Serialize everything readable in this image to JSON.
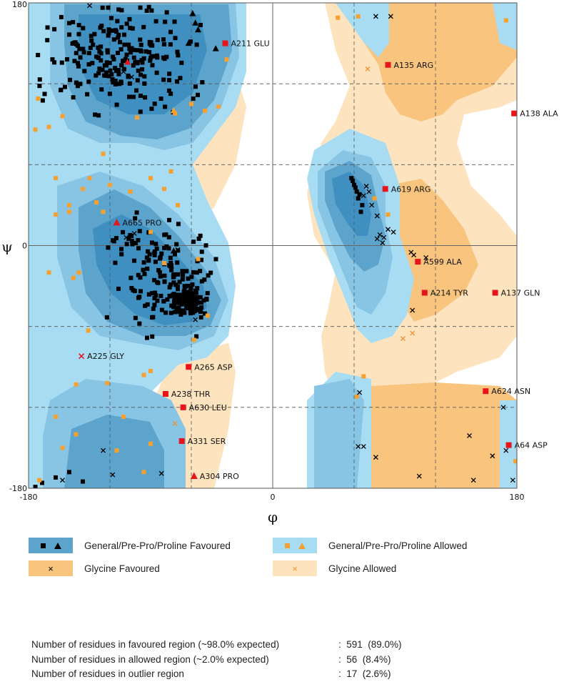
{
  "chart_data": {
    "type": "scatter",
    "xlabel": "φ",
    "ylabel": "ψ",
    "xlim": [
      -180,
      180
    ],
    "ylim": [
      -180,
      180
    ],
    "x_ticks": [
      "-180",
      "0",
      "180"
    ],
    "y_ticks": [
      "180",
      "0",
      "-180"
    ],
    "grid": "dashed lines at ±120 and ±60, solid lines at 0",
    "outliers": [
      {
        "label": "A211 GLU",
        "phi": -35,
        "psi": 150,
        "marker": "square"
      },
      {
        "label": "A135 ARG",
        "phi": 85,
        "psi": 134,
        "marker": "square"
      },
      {
        "label": "A138 ALA",
        "phi": 178,
        "psi": 98,
        "marker": "square"
      },
      {
        "label": "A619 ARG",
        "phi": 83,
        "psi": 42,
        "marker": "square"
      },
      {
        "label": "A665 PRO",
        "phi": -115,
        "psi": 17,
        "marker": "triangle"
      },
      {
        "label": "A599 ALA",
        "phi": 107,
        "psi": -12,
        "marker": "square"
      },
      {
        "label": "A214 TYR",
        "phi": 112,
        "psi": -35,
        "marker": "square"
      },
      {
        "label": "A137 GLN",
        "phi": 164,
        "psi": -35,
        "marker": "square"
      },
      {
        "label": "A225 GLY",
        "phi": -141,
        "psi": -82,
        "marker": "cross"
      },
      {
        "label": "A265 ASP",
        "phi": -62,
        "psi": -90,
        "marker": "square"
      },
      {
        "label": "A238 THR",
        "phi": -79,
        "psi": -110,
        "marker": "square"
      },
      {
        "label": "A624 ASN",
        "phi": 157,
        "psi": -108,
        "marker": "square"
      },
      {
        "label": "A630 LEU",
        "phi": -66,
        "psi": -120,
        "marker": "square"
      },
      {
        "label": "A64 ASP",
        "phi": 174,
        "psi": -148,
        "marker": "square"
      },
      {
        "label": "A331 SER",
        "phi": -67,
        "psi": -145,
        "marker": "square"
      },
      {
        "label": "A304 PRO",
        "phi": -58,
        "psi": -171,
        "marker": "triangle"
      }
    ],
    "hidden_label_residue": {
      "phi": -107,
      "psi": 136,
      "marker": "triangle"
    },
    "legend": {
      "general_favoured": "General/Pre-Pro/Proline Favoured",
      "general_allowed": "General/Pre-Pro/Proline Allowed",
      "glycine_favoured": "Glycine Favoured",
      "glycine_allowed": "Glycine Allowed"
    },
    "colors": {
      "general_favoured_dark": "#3f8fc0",
      "general_favoured": "#5da4cc",
      "general_allowed": "#a8dcf2",
      "general_allowed_mid": "#88c4e4",
      "glycine_favoured": "#f8c47e",
      "glycine_allowed": "#fde3be",
      "outlier": "#e8141c",
      "allowed_marker": "#f5a030"
    }
  },
  "stats": [
    {
      "label": "Number of residues in favoured region (~98.0% expected)",
      "value": ":  591  (89.0%)"
    },
    {
      "label": "Number of residues in allowed region (~2.0% expected)",
      "value": ":  56  (8.4%)"
    },
    {
      "label": "Number of residues in outlier region",
      "value": ":  17  (2.6%)"
    }
  ]
}
